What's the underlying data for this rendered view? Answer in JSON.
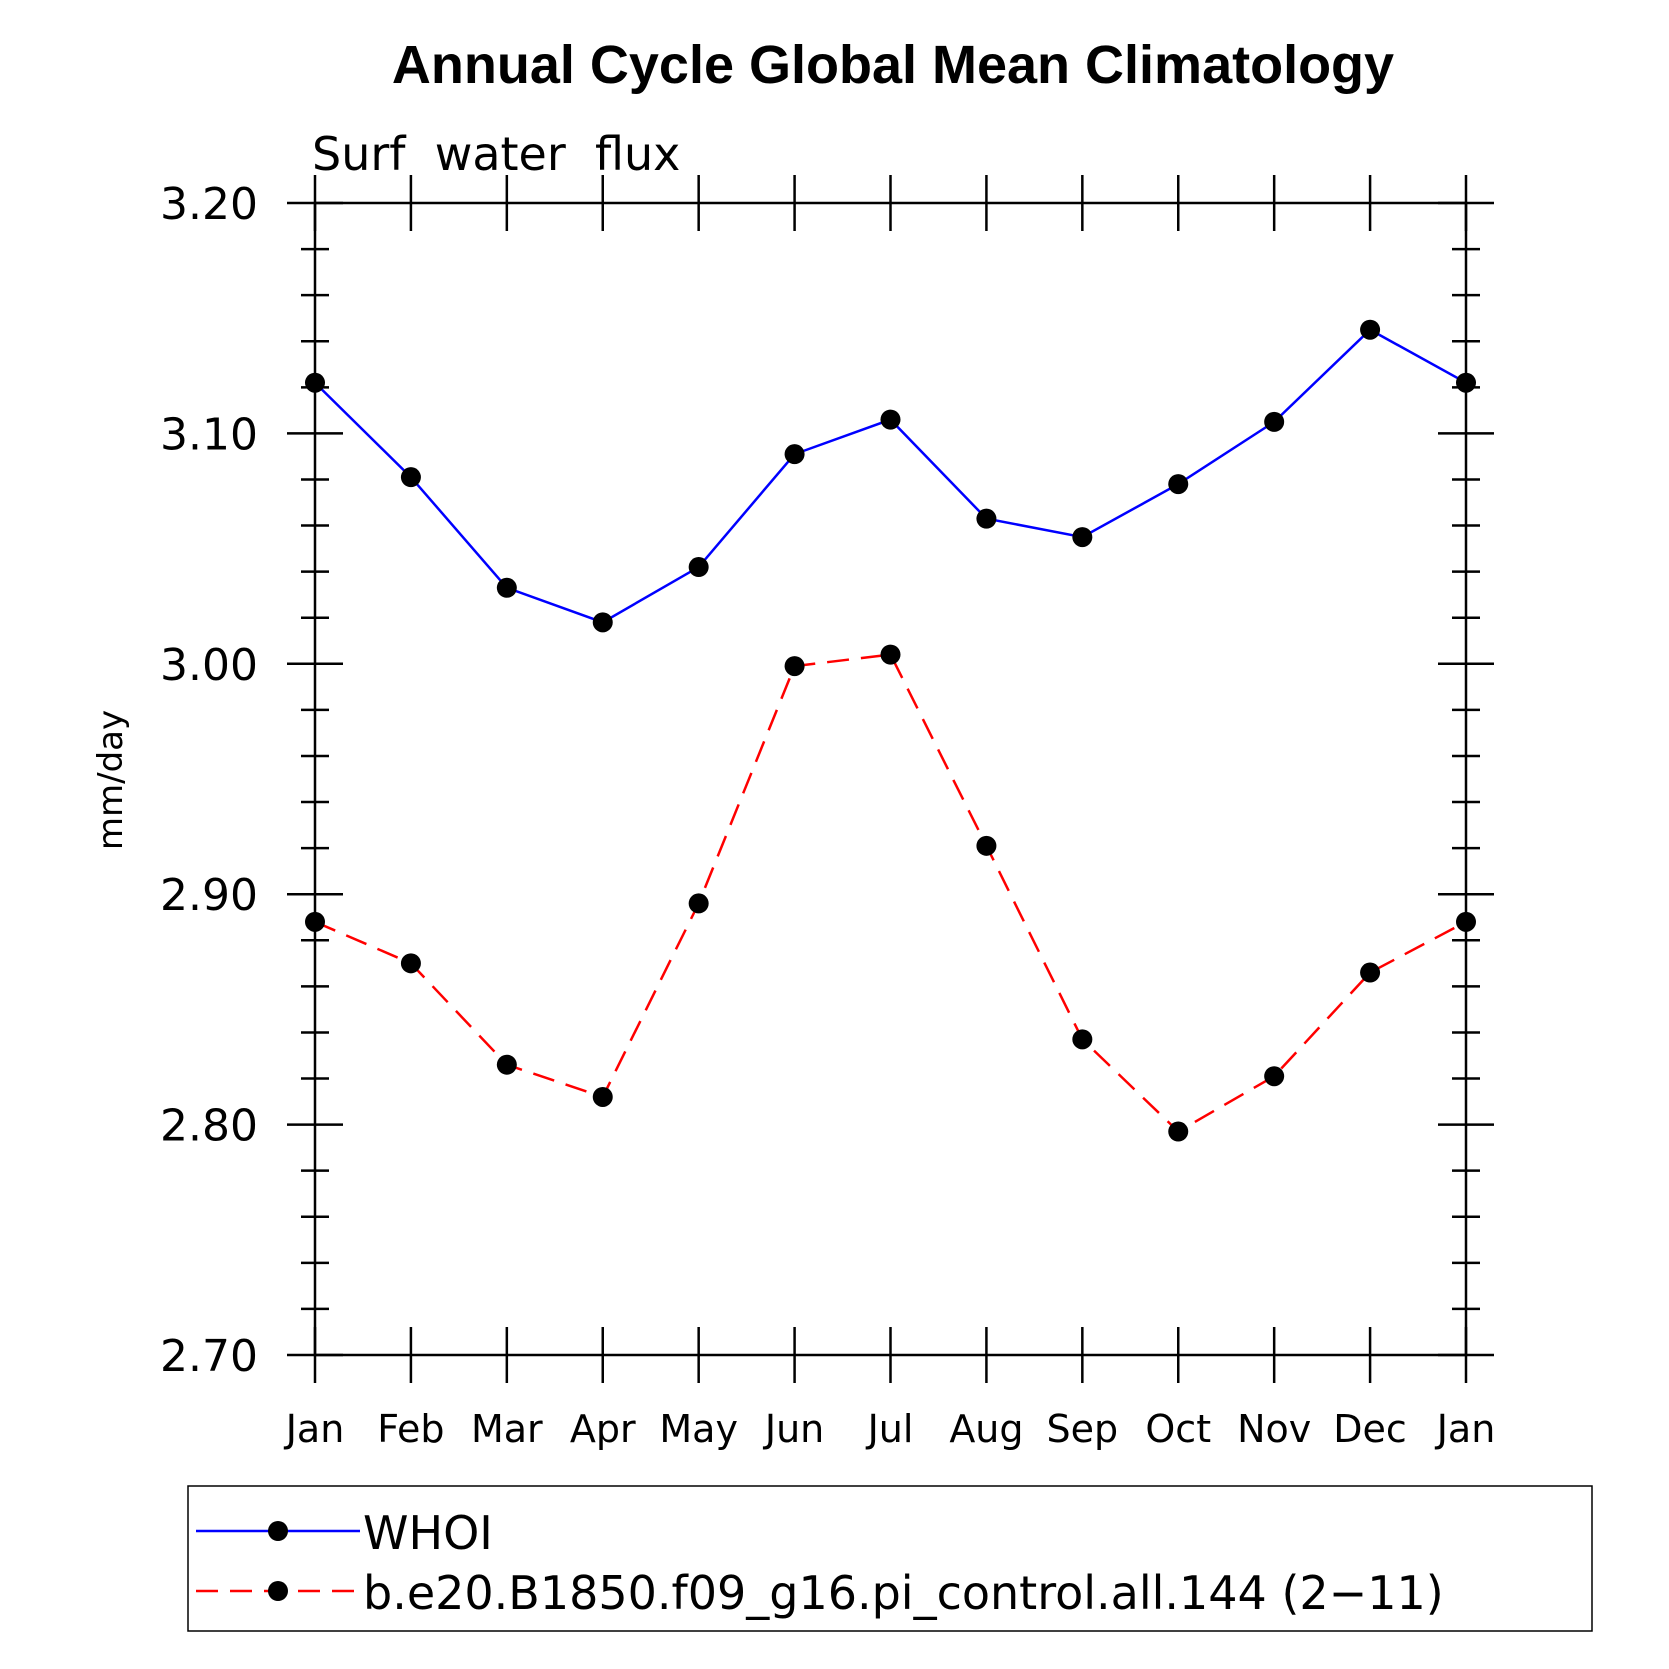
{
  "chart_data": {
    "type": "line",
    "title": "Annual Cycle Global Mean Climatology",
    "subtitle": "Surf  water  flux",
    "ylabel": "mm/day",
    "xlabel": "",
    "categories": [
      "Jan",
      "Feb",
      "Mar",
      "Apr",
      "May",
      "Jun",
      "Jul",
      "Aug",
      "Sep",
      "Oct",
      "Nov",
      "Dec",
      "Jan"
    ],
    "ylim": [
      2.7,
      3.2
    ],
    "yticks": [
      "2.70",
      "2.80",
      "2.90",
      "3.00",
      "3.10",
      "3.20"
    ],
    "ytick_values": [
      2.7,
      2.8,
      2.9,
      3.0,
      3.1,
      3.2
    ],
    "y_minor_step": 0.02,
    "grid": false,
    "legend_position": "bottom",
    "series": [
      {
        "name": "WHOI",
        "color": "#0000ff",
        "dash": "solid",
        "values": [
          3.122,
          3.081,
          3.033,
          3.018,
          3.042,
          3.091,
          3.106,
          3.063,
          3.055,
          3.078,
          3.105,
          3.145,
          3.122
        ]
      },
      {
        "name": "b.e20.B1850.f09_g16.pi_control.all.144 (2−11)",
        "color": "#ff0000",
        "dash": "dashed",
        "values": [
          2.888,
          2.87,
          2.826,
          2.812,
          2.896,
          2.999,
          3.004,
          2.921,
          2.837,
          2.797,
          2.821,
          2.866,
          2.888
        ]
      }
    ]
  }
}
